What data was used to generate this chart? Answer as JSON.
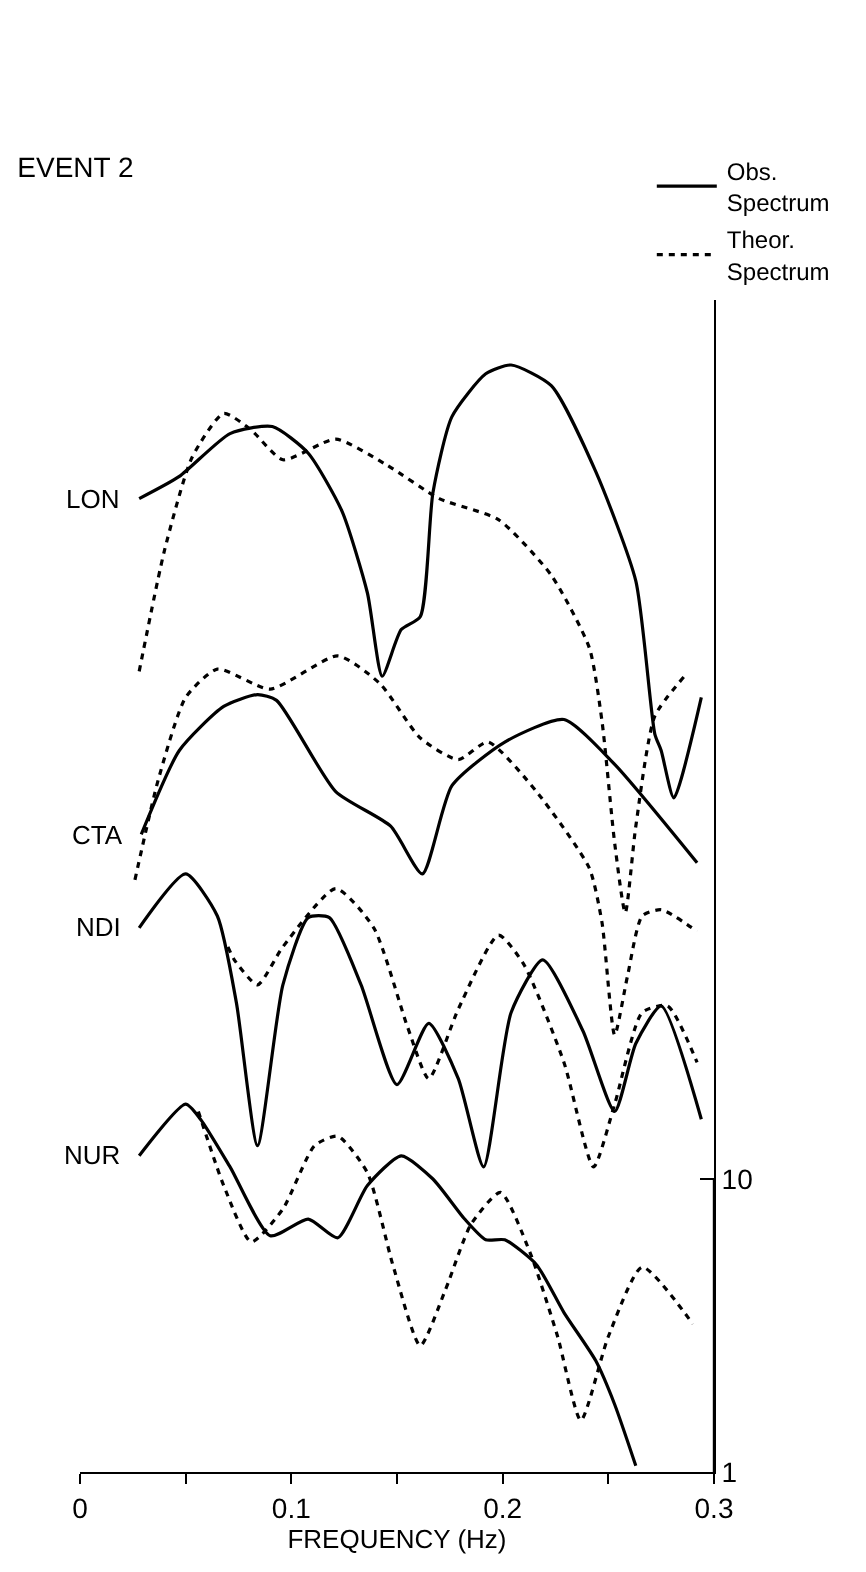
{
  "chart_data": {
    "type": "line",
    "title": "EVENT 2",
    "xlabel": "FREQUENCY (Hz)",
    "log": "y",
    "legend": "top right",
    "marker": "none",
    "xlim": [
      0,
      0.3
    ],
    "xticks": [
      0,
      {
        "value": 0.05,
        "label": null
      },
      0.1,
      {
        "value": 0.15,
        "label": null
      },
      0.2,
      {
        "value": 0.25,
        "label": null
      },
      0.3
    ],
    "ylim": [
      1,
      10000
    ],
    "yticks": [
      1,
      10
    ],
    "annotations": [
      "LON",
      "CTA",
      "NDI",
      "NUR"
    ],
    "series": [
      {
        "name": "Obs. Spectrum",
        "color": "#000000",
        "line_style": "solid",
        "x": [
          0.028,
          0.047,
          0.071,
          0.091,
          0.108,
          0.124,
          0.136,
          0.143,
          0.152,
          0.161,
          0.167,
          0.176,
          0.192,
          0.204,
          0.223,
          0.244,
          0.263,
          0.272,
          0.275,
          0.281,
          0.294
        ],
        "values": [
          2100,
          2500,
          3500,
          3700,
          3000,
          1900,
          1000,
          520,
          750,
          830,
          2200,
          4000,
          5600,
          6000,
          5100,
          2600,
          1100,
          330,
          290,
          200,
          440
        ]
      },
      {
        "name": "Theor. Spectrum",
        "color": "#000000",
        "line_style": "dotted",
        "x": [
          0.028,
          0.04,
          0.053,
          0.068,
          0.081,
          0.096,
          0.121,
          0.145,
          0.17,
          0.198,
          0.223,
          0.241,
          0.247,
          0.253,
          0.258,
          0.263,
          0.272,
          0.286
        ],
        "values": [
          540,
          1400,
          2900,
          4100,
          3600,
          2850,
          3350,
          2740,
          2100,
          1780,
          1150,
          650,
          365,
          140,
          81,
          160,
          380,
          520
        ]
      },
      {
        "color": "#000000",
        "line_style": "solid",
        "x": [
          0.029,
          0.047,
          0.068,
          0.084,
          0.093,
          0.121,
          0.147,
          0.162,
          0.176,
          0.201,
          0.229,
          0.253,
          0.292
        ],
        "values": [
          150,
          290,
          410,
          450,
          430,
          210,
          160,
          110,
          220,
          310,
          370,
          260,
          120
        ]
      },
      {
        "color": "#000000",
        "line_style": "dotted",
        "x": [
          0.026,
          0.037,
          0.05,
          0.065,
          0.09,
          0.122,
          0.142,
          0.161,
          0.179,
          0.193,
          0.216,
          0.241,
          0.247,
          0.253,
          0.259,
          0.266,
          0.275,
          0.292
        ],
        "values": [
          105,
          230,
          440,
          550,
          470,
          610,
          490,
          320,
          270,
          310,
          210,
          115,
          75,
          31,
          49,
          79,
          83,
          70
        ]
      },
      {
        "color": "#000000",
        "line_style": "solid",
        "x": [
          0.028,
          0.05,
          0.065,
          0.074,
          0.084,
          0.096,
          0.108,
          0.118,
          0.133,
          0.15,
          0.165,
          0.179,
          0.191,
          0.204,
          0.219,
          0.238,
          0.253,
          0.263,
          0.275,
          0.294
        ],
        "values": [
          72,
          110,
          79,
          40,
          13,
          46,
          78,
          78,
          46,
          21,
          34,
          22,
          11,
          37,
          56,
          32,
          17,
          29,
          39,
          16
        ]
      },
      {
        "color": "#000000",
        "line_style": "dotted",
        "x": [
          0.07,
          0.073,
          0.084,
          0.096,
          0.121,
          0.139,
          0.155,
          0.165,
          0.179,
          0.198,
          0.21,
          0.229,
          0.243,
          0.253,
          0.266,
          0.278,
          0.292
        ],
        "values": [
          62,
          56,
          46,
          62,
          98,
          72,
          33,
          22,
          38,
          68,
          54,
          25,
          11,
          18,
          37,
          39,
          25
        ]
      },
      {
        "color": "#000000",
        "line_style": "solid",
        "x": [
          0.028,
          0.05,
          0.057,
          0.071,
          0.09,
          0.108,
          0.122,
          0.136,
          0.152,
          0.167,
          0.182,
          0.192,
          0.201,
          0.216,
          0.229,
          0.244,
          0.253,
          0.263
        ],
        "values": [
          12,
          18,
          16,
          11,
          6.4,
          7.3,
          6.3,
          9.5,
          12,
          10,
          7.3,
          6.2,
          6.2,
          5.1,
          3.5,
          2.4,
          1.7,
          1.05
        ]
      },
      {
        "color": "#000000",
        "line_style": "dotted",
        "x": [
          0.056,
          0.068,
          0.081,
          0.096,
          0.111,
          0.122,
          0.136,
          0.148,
          0.161,
          0.173,
          0.185,
          0.199,
          0.213,
          0.226,
          0.237,
          0.25,
          0.266,
          0.29
        ],
        "values": [
          17,
          9.5,
          6.1,
          7.9,
          13,
          14,
          10.5,
          5.1,
          2.7,
          4.2,
          7.0,
          9.0,
          5.6,
          2.9,
          1.5,
          2.9,
          5.0,
          3.2
        ]
      }
    ]
  }
}
